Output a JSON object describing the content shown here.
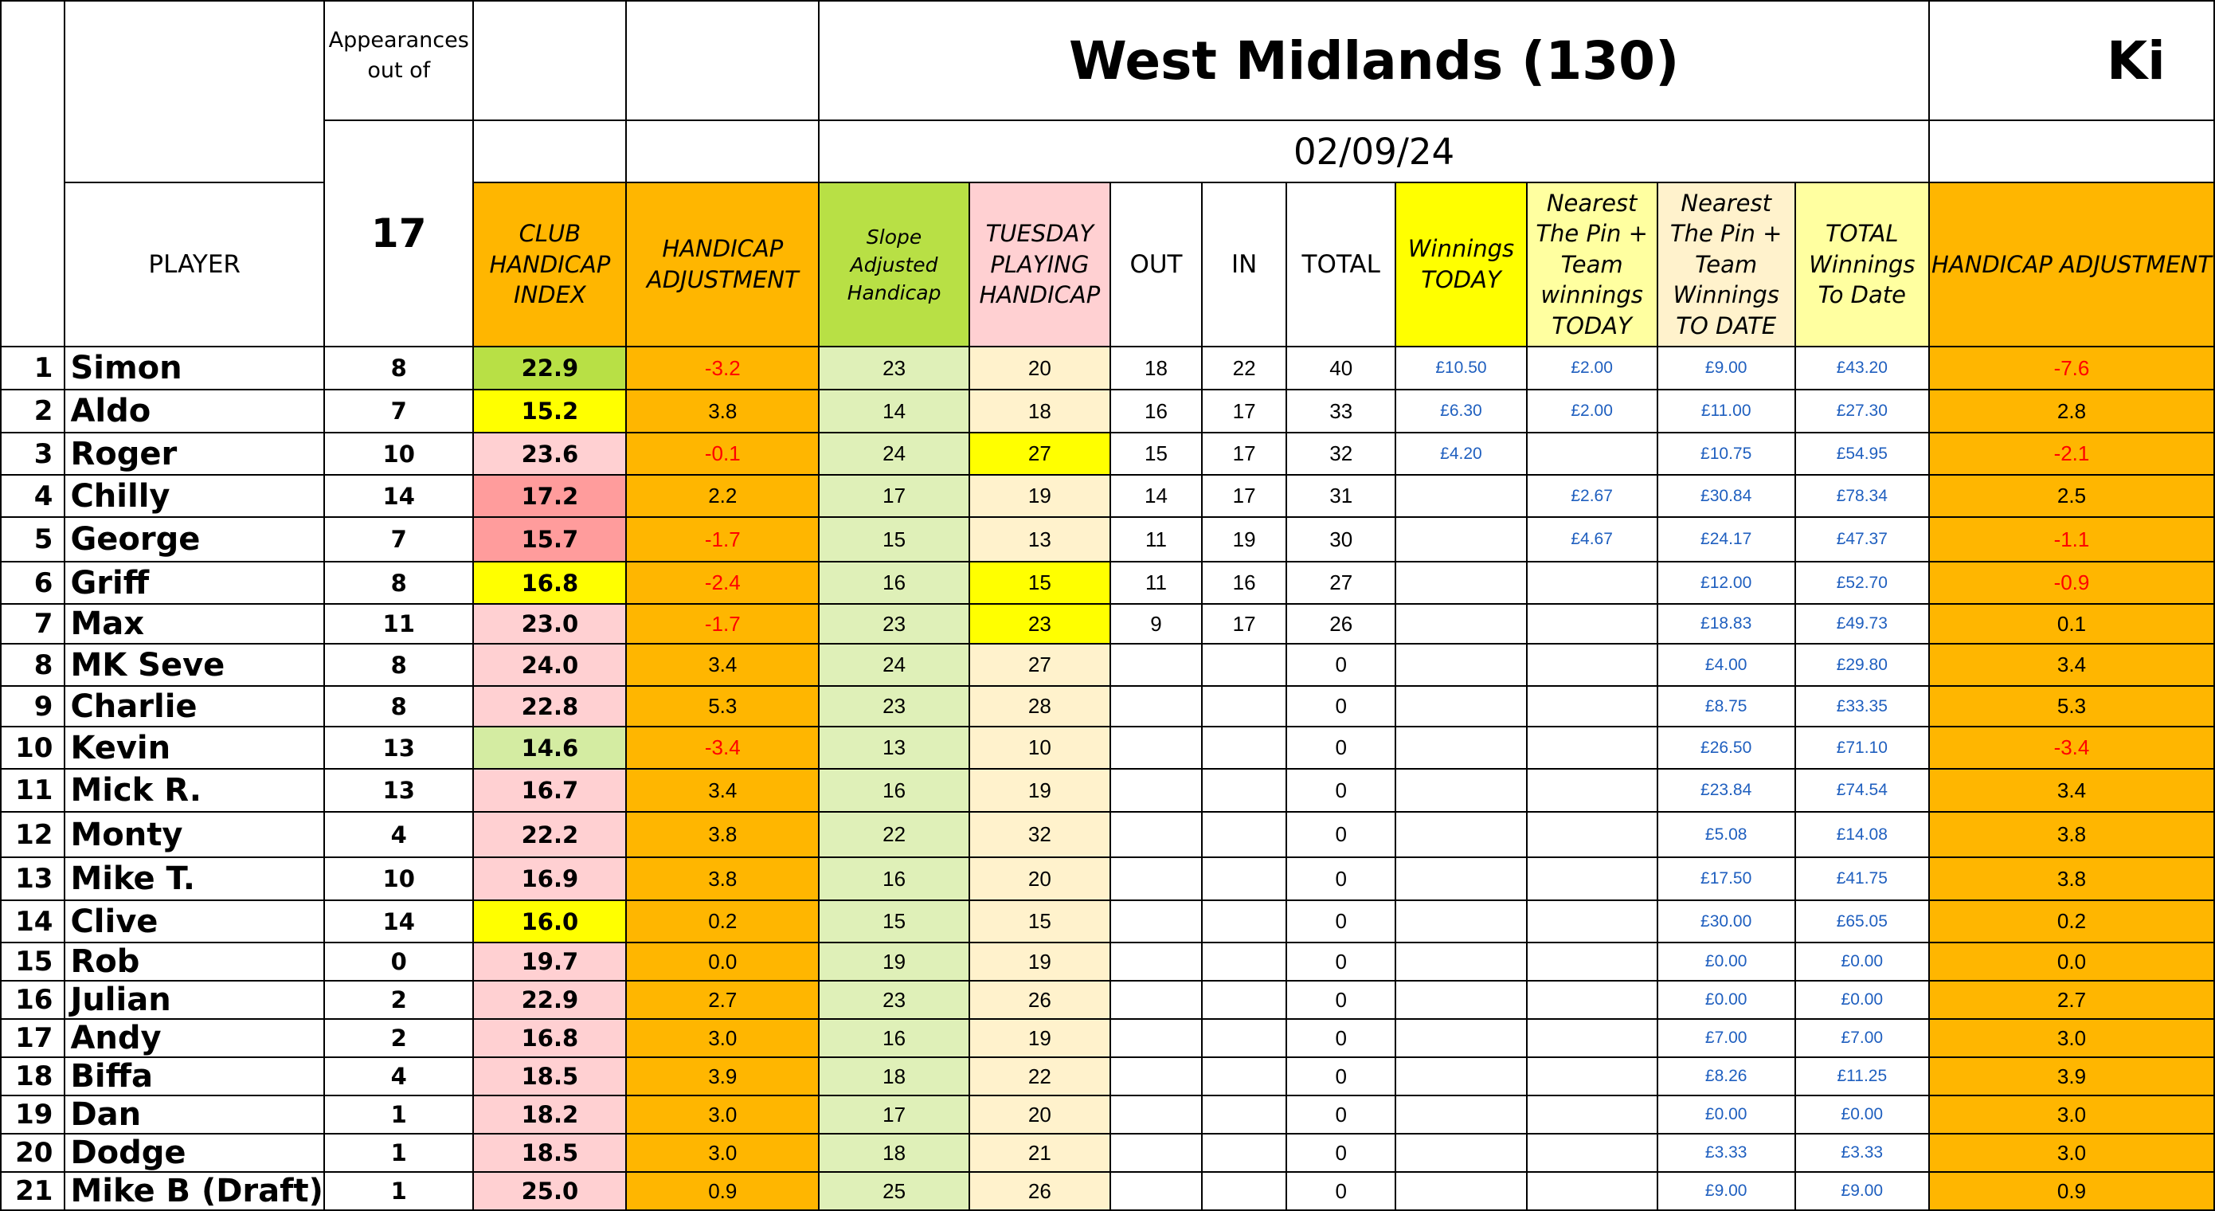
{
  "title": "West Midlands (130)",
  "title_next": "Ki",
  "date": "02/09/24",
  "appearances_label": "Appearances out of",
  "appearances_total": "17",
  "headers": {
    "player": "PLAYER",
    "club_handicap_index": "CLUB HANDICAP INDEX",
    "handicap_adjustment": "HANDICAP ADJUSTMENT",
    "slope_adjusted_handicap": "Slope Adjusted Handicap",
    "tuesday_playing_handicap": "TUESDAY PLAYING HANDICAP",
    "out": "OUT",
    "in": "IN",
    "total": "TOTAL",
    "winnings_today": "Winnings TODAY",
    "ntp_team_today": "Nearest The Pin + Team winnings TODAY",
    "ntp_team_to_date": "Nearest The Pin + Team Winnings TO DATE",
    "total_winnings_to_date": "TOTAL Winnings To Date",
    "handicap_adjustment_next": "HANDICAP ADJUSTMENT"
  },
  "colors": {
    "orange": "#ffb600",
    "green": "#b8e045",
    "pink": "#ffd0d2",
    "yellow": "#ffff00",
    "light_yellow": "#ffffa0",
    "cream": "#fff2cc",
    "light_green": "#dff0b8",
    "red_highlight": "#ff9c9c",
    "money_blue": "#1f5fbf",
    "negative_red": "#ff0000"
  },
  "players": [
    {
      "num": "1",
      "name": "Simon",
      "apps": "8",
      "chi": "22.9",
      "chi_color": "green",
      "adj": "-3.2",
      "slope": "23",
      "tph": "20",
      "tph_color": "cream",
      "out": "18",
      "in": "22",
      "total": "40",
      "win": "£10.50",
      "ntp": "£2.00",
      "ntp_date": "£9.00",
      "tot": "£43.20",
      "adj2": "-7.6"
    },
    {
      "num": "2",
      "name": "Aldo",
      "apps": "7",
      "chi": "15.2",
      "chi_color": "yellow",
      "adj": "3.8",
      "slope": "14",
      "tph": "18",
      "tph_color": "cream",
      "out": "16",
      "in": "17",
      "total": "33",
      "win": "£6.30",
      "ntp": "£2.00",
      "ntp_date": "£11.00",
      "tot": "£27.30",
      "adj2": "2.8"
    },
    {
      "num": "3",
      "name": "Roger",
      "apps": "10",
      "chi": "23.6",
      "chi_color": "pink",
      "adj": "-0.1",
      "slope": "24",
      "tph": "27",
      "tph_color": "yellow",
      "out": "15",
      "in": "17",
      "total": "32",
      "win": "£4.20",
      "ntp": "",
      "ntp_date": "£10.75",
      "tot": "£54.95",
      "adj2": "-2.1"
    },
    {
      "num": "4",
      "name": "Chilly",
      "apps": "14",
      "chi": "17.2",
      "chi_color": "red",
      "adj": "2.2",
      "slope": "17",
      "tph": "19",
      "tph_color": "cream",
      "out": "14",
      "in": "17",
      "total": "31",
      "win": "",
      "ntp": "£2.67",
      "ntp_date": "£30.84",
      "tot": "£78.34",
      "adj2": "2.5"
    },
    {
      "num": "5",
      "name": "George",
      "apps": "7",
      "chi": "15.7",
      "chi_color": "red",
      "adj": "-1.7",
      "slope": "15",
      "tph": "13",
      "tph_color": "cream",
      "out": "11",
      "in": "19",
      "total": "30",
      "win": "",
      "ntp": "£4.67",
      "ntp_date": "£24.17",
      "tot": "£47.37",
      "adj2": "-1.1"
    },
    {
      "num": "6",
      "name": "Griff",
      "apps": "8",
      "chi": "16.8",
      "chi_color": "yellow",
      "adj": "-2.4",
      "slope": "16",
      "tph": "15",
      "tph_color": "yellow",
      "out": "11",
      "in": "16",
      "total": "27",
      "win": "",
      "ntp": "",
      "ntp_date": "£12.00",
      "tot": "£52.70",
      "adj2": "-0.9"
    },
    {
      "num": "7",
      "name": "Max",
      "apps": "11",
      "chi": "23.0",
      "chi_color": "pink",
      "adj": "-1.7",
      "slope": "23",
      "tph": "23",
      "tph_color": "yellow",
      "out": "9",
      "in": "17",
      "total": "26",
      "win": "",
      "ntp": "",
      "ntp_date": "£18.83",
      "tot": "£49.73",
      "adj2": "0.1"
    },
    {
      "num": "8",
      "name": "MK Seve",
      "apps": "8",
      "chi": "24.0",
      "chi_color": "pink",
      "adj": "3.4",
      "slope": "24",
      "tph": "27",
      "tph_color": "cream",
      "out": "",
      "in": "",
      "total": "0",
      "win": "",
      "ntp": "",
      "ntp_date": "£4.00",
      "tot": "£29.80",
      "adj2": "3.4"
    },
    {
      "num": "9",
      "name": "Charlie",
      "apps": "8",
      "chi": "22.8",
      "chi_color": "pink",
      "adj": "5.3",
      "slope": "23",
      "tph": "28",
      "tph_color": "cream",
      "out": "",
      "in": "",
      "total": "0",
      "win": "",
      "ntp": "",
      "ntp_date": "£8.75",
      "tot": "£33.35",
      "adj2": "5.3"
    },
    {
      "num": "10",
      "name": "Kevin",
      "apps": "13",
      "chi": "14.6",
      "chi_color": "ltgreen",
      "adj": "-3.4",
      "slope": "13",
      "tph": "10",
      "tph_color": "cream",
      "out": "",
      "in": "",
      "total": "0",
      "win": "",
      "ntp": "",
      "ntp_date": "£26.50",
      "tot": "£71.10",
      "adj2": "-3.4"
    },
    {
      "num": "11",
      "name": "Mick R.",
      "apps": "13",
      "chi": "16.7",
      "chi_color": "pink",
      "adj": "3.4",
      "slope": "16",
      "tph": "19",
      "tph_color": "cream",
      "out": "",
      "in": "",
      "total": "0",
      "win": "",
      "ntp": "",
      "ntp_date": "£23.84",
      "tot": "£74.54",
      "adj2": "3.4"
    },
    {
      "num": "12",
      "name": "Monty",
      "apps": "4",
      "chi": "22.2",
      "chi_color": "pink",
      "adj": "3.8",
      "slope": "22",
      "tph": "32",
      "tph_color": "cream",
      "out": "",
      "in": "",
      "total": "0",
      "win": "",
      "ntp": "",
      "ntp_date": "£5.08",
      "tot": "£14.08",
      "adj2": "3.8"
    },
    {
      "num": "13",
      "name": "Mike T.",
      "apps": "10",
      "chi": "16.9",
      "chi_color": "pink",
      "adj": "3.8",
      "slope": "16",
      "tph": "20",
      "tph_color": "cream",
      "out": "",
      "in": "",
      "total": "0",
      "win": "",
      "ntp": "",
      "ntp_date": "£17.50",
      "tot": "£41.75",
      "adj2": "3.8"
    },
    {
      "num": "14",
      "name": "Clive",
      "apps": "14",
      "chi": "16.0",
      "chi_color": "yellow",
      "adj": "0.2",
      "slope": "15",
      "tph": "15",
      "tph_color": "cream",
      "out": "",
      "in": "",
      "total": "0",
      "win": "",
      "ntp": "",
      "ntp_date": "£30.00",
      "tot": "£65.05",
      "adj2": "0.2"
    },
    {
      "num": "15",
      "name": "Rob",
      "apps": "0",
      "chi": "19.7",
      "chi_color": "pink",
      "adj": "0.0",
      "slope": "19",
      "tph": "19",
      "tph_color": "cream",
      "out": "",
      "in": "",
      "total": "0",
      "win": "",
      "ntp": "",
      "ntp_date": "£0.00",
      "tot": "£0.00",
      "adj2": "0.0"
    },
    {
      "num": "16",
      "name": "Julian",
      "apps": "2",
      "chi": "22.9",
      "chi_color": "pink",
      "adj": "2.7",
      "slope": "23",
      "tph": "26",
      "tph_color": "cream",
      "out": "",
      "in": "",
      "total": "0",
      "win": "",
      "ntp": "",
      "ntp_date": "£0.00",
      "tot": "£0.00",
      "adj2": "2.7"
    },
    {
      "num": "17",
      "name": "Andy",
      "apps": "2",
      "chi": "16.8",
      "chi_color": "pink",
      "adj": "3.0",
      "slope": "16",
      "tph": "19",
      "tph_color": "cream",
      "out": "",
      "in": "",
      "total": "0",
      "win": "",
      "ntp": "",
      "ntp_date": "£7.00",
      "tot": "£7.00",
      "adj2": "3.0"
    },
    {
      "num": "18",
      "name": "Biffa",
      "apps": "4",
      "chi": "18.5",
      "chi_color": "pink",
      "adj": "3.9",
      "slope": "18",
      "tph": "22",
      "tph_color": "cream",
      "out": "",
      "in": "",
      "total": "0",
      "win": "",
      "ntp": "",
      "ntp_date": "£8.26",
      "tot": "£11.25",
      "adj2": "3.9"
    },
    {
      "num": "19",
      "name": "Dan",
      "apps": "1",
      "chi": "18.2",
      "chi_color": "pink",
      "adj": "3.0",
      "slope": "17",
      "tph": "20",
      "tph_color": "cream",
      "out": "",
      "in": "",
      "total": "0",
      "win": "",
      "ntp": "",
      "ntp_date": "£0.00",
      "tot": "£0.00",
      "adj2": "3.0"
    },
    {
      "num": "20",
      "name": "Dodge",
      "apps": "1",
      "chi": "18.5",
      "chi_color": "pink",
      "adj": "3.0",
      "slope": "18",
      "tph": "21",
      "tph_color": "cream",
      "out": "",
      "in": "",
      "total": "0",
      "win": "",
      "ntp": "",
      "ntp_date": "£3.33",
      "tot": "£3.33",
      "adj2": "3.0"
    },
    {
      "num": "21",
      "name": "Mike B (Draft)",
      "apps": "1",
      "chi": "25.0",
      "chi_color": "pink",
      "adj": "0.9",
      "slope": "25",
      "tph": "26",
      "tph_color": "cream",
      "out": "",
      "in": "",
      "total": "0",
      "win": "",
      "ntp": "",
      "ntp_date": "£9.00",
      "tot": "£9.00",
      "adj2": "0.9"
    }
  ]
}
